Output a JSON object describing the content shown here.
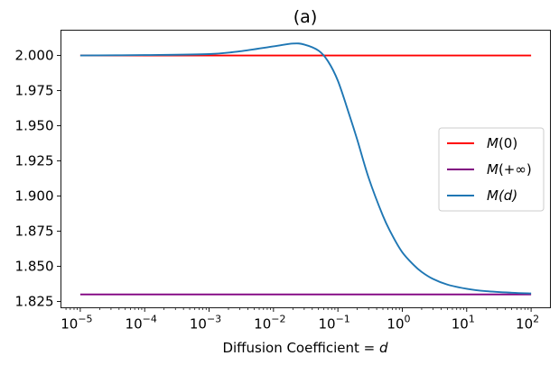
{
  "chart_data": {
    "type": "line",
    "title": "(a)",
    "xlabel": "Diffusion Coefficient = d",
    "xlabel_parts": {
      "text": "Diffusion Coefficient = ",
      "var": "d"
    },
    "ylabel": "",
    "xscale": "log",
    "xlim": [
      -5.3,
      2.3
    ],
    "ylim": [
      1.8205,
      2.018
    ],
    "yticks": [
      1.825,
      1.85,
      1.875,
      1.9,
      1.925,
      1.95,
      1.975,
      2.0
    ],
    "ytick_labels": [
      "1.825",
      "1.850",
      "1.875",
      "1.900",
      "1.925",
      "1.950",
      "1.975",
      "2.000"
    ],
    "xticks": [
      {
        "exp": -5,
        "base": "10",
        "sup": "−5"
      },
      {
        "exp": -4,
        "base": "10",
        "sup": "−4"
      },
      {
        "exp": -3,
        "base": "10",
        "sup": "−3"
      },
      {
        "exp": -2,
        "base": "10",
        "sup": "−2"
      },
      {
        "exp": -1,
        "base": "10",
        "sup": "−1"
      },
      {
        "exp": 0,
        "base": "10",
        "sup": "0"
      },
      {
        "exp": 1,
        "base": "10",
        "sup": "1"
      },
      {
        "exp": 2,
        "base": "10",
        "sup": "2"
      }
    ],
    "series": [
      {
        "name": "M(0)",
        "label_main": "M",
        "label_arg": "(0)",
        "color": "#ff0000",
        "x": [
          1e-05,
          100
        ],
        "y": [
          2.0,
          2.0
        ]
      },
      {
        "name": "M(+∞)",
        "label_main": "M",
        "label_arg": "(+∞)",
        "color": "#800080",
        "x": [
          1e-05,
          100
        ],
        "y": [
          1.83,
          1.83
        ]
      },
      {
        "name": "M(d)",
        "label_main": "M",
        "label_arg": "(d)",
        "color": "#1f77b4",
        "x": [
          1e-05,
          0.0001,
          0.001,
          0.003,
          0.01,
          0.02,
          0.03,
          0.05,
          0.07,
          0.1,
          0.15,
          0.2,
          0.3,
          0.5,
          0.7,
          1,
          1.5,
          2,
          3,
          5,
          10,
          20,
          50,
          100
        ],
        "y": [
          2.0,
          2.0003,
          2.001,
          2.003,
          2.0065,
          2.0085,
          2.0078,
          2.0035,
          1.996,
          1.982,
          1.958,
          1.94,
          1.913,
          1.886,
          1.872,
          1.86,
          1.851,
          1.846,
          1.841,
          1.837,
          1.834,
          1.8323,
          1.8312,
          1.8307
        ]
      }
    ],
    "legend": {
      "position": "center-right",
      "entries": [
        "M(0)",
        "M(+∞)",
        "M(d)"
      ]
    }
  }
}
